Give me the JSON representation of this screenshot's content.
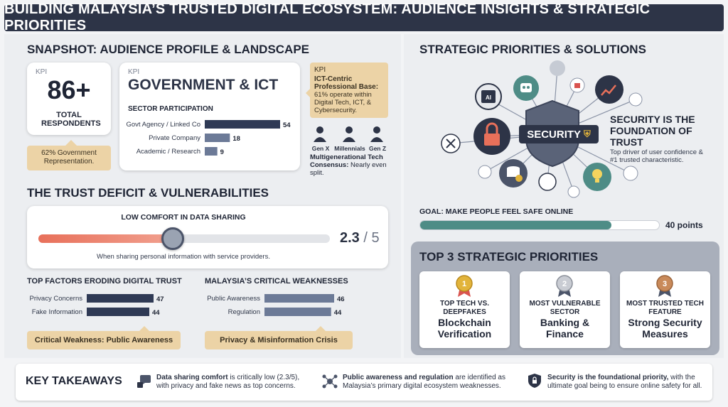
{
  "title": "BUILDING MALAYSIA’S TRUSTED DIGITAL ECOSYSTEM: AUDIENCE INSIGHTS & STRATEGIC PRIORITIES",
  "snapshot": {
    "heading": "SNAPSHOT: AUDIENCE PROFILE & LANDSCAPE",
    "kpi1": {
      "tag": "KPI",
      "value": "86+",
      "label": "TOTAL RESPONDENTS",
      "note": "62% Government Representation."
    },
    "kpi2": {
      "tag": "KPI",
      "value": "GOVERNMENT & ICT",
      "subheading": "SECTOR PARTICIPATION",
      "bars": [
        {
          "label": "Govt Agency / Linked Co",
          "value": 54
        },
        {
          "label": "Private Company",
          "value": 18
        },
        {
          "label": "Academic / Research",
          "value": 9
        }
      ]
    },
    "kpi3": {
      "tag": "KPI",
      "title": "ICT-Centric Professional Base:",
      "text": "61% operate within Digital Tech, ICT, & Cybersecurity."
    },
    "generations": [
      "Gen X",
      "Millennials",
      "Gen Z"
    ],
    "gen_title": "Multigenerational Tech Consensus:",
    "gen_text": "Nearly even split."
  },
  "trust": {
    "heading": "THE TRUST DEFICIT & VULNERABILITIES",
    "slider_title": "LOW COMFORT IN DATA SHARING",
    "score": "2.3",
    "scale": "/ 5",
    "score_value": 2.3,
    "score_max": 5,
    "slider_caption": "When sharing personal information with service providers.",
    "factors_title": "TOP FACTORS ERODING DIGITAL TRUST",
    "factors": [
      {
        "label": "Privacy Concerns",
        "value": 47
      },
      {
        "label": "Fake Information",
        "value": 44
      }
    ],
    "factors_note": "Critical Weakness: Public Awareness",
    "weak_title": "MALAYSIA’S CRITICAL WEAKNESSES",
    "weaknesses": [
      {
        "label": "Public Awareness",
        "value": 46
      },
      {
        "label": "Regulation",
        "value": 44
      }
    ],
    "weak_note": "Privacy & Misinformation Crisis"
  },
  "strategy": {
    "heading": "STRATEGIC PRIORITIES & SOLUTIONS",
    "shield_label": "SECURITY",
    "foundation_title": "SECURITY IS THE FOUNDATION OF TRUST",
    "foundation_text": "Top driver of user confidence & #1 trusted characteristic.",
    "goal_label": "GOAL: MAKE PEOPLE FEEL SAFE ONLINE",
    "goal_value": "40 points",
    "goal_points": 40,
    "top3_heading": "TOP 3 STRATEGIC PRIORITIES",
    "priorities": [
      {
        "rank": "1",
        "sub": "TOP TECH VS. DEEPFAKES",
        "main": "Blockchain Verification"
      },
      {
        "rank": "2",
        "sub": "MOST VULNERABLE SECTOR",
        "main": "Banking & Finance"
      },
      {
        "rank": "3",
        "sub": "MOST TRUSTED TECH FEATURE",
        "main": "Strong Security Measures"
      }
    ]
  },
  "takeaways": {
    "heading": "KEY TAKEAWAYS",
    "items": [
      {
        "bold": "Data sharing comfort",
        "text": " is critically low (2.3/5), with privacy and fake news as top concerns."
      },
      {
        "bold": "Public awareness and regulation",
        "text": " are identified as Malaysia’s primary digital ecosystem weaknesses."
      },
      {
        "bold": "Security is the foundational priority,",
        "text": " with the ultimate goal being to ensure online safety for all."
      }
    ]
  },
  "colors": {
    "navy": "#2d3447",
    "tan": "#ecd3a6",
    "teal": "#4e8c86",
    "slider_red": "#e8705a",
    "gold": "#e2b43b",
    "silver": "#b9bcc4",
    "bronze": "#c98a5a"
  }
}
